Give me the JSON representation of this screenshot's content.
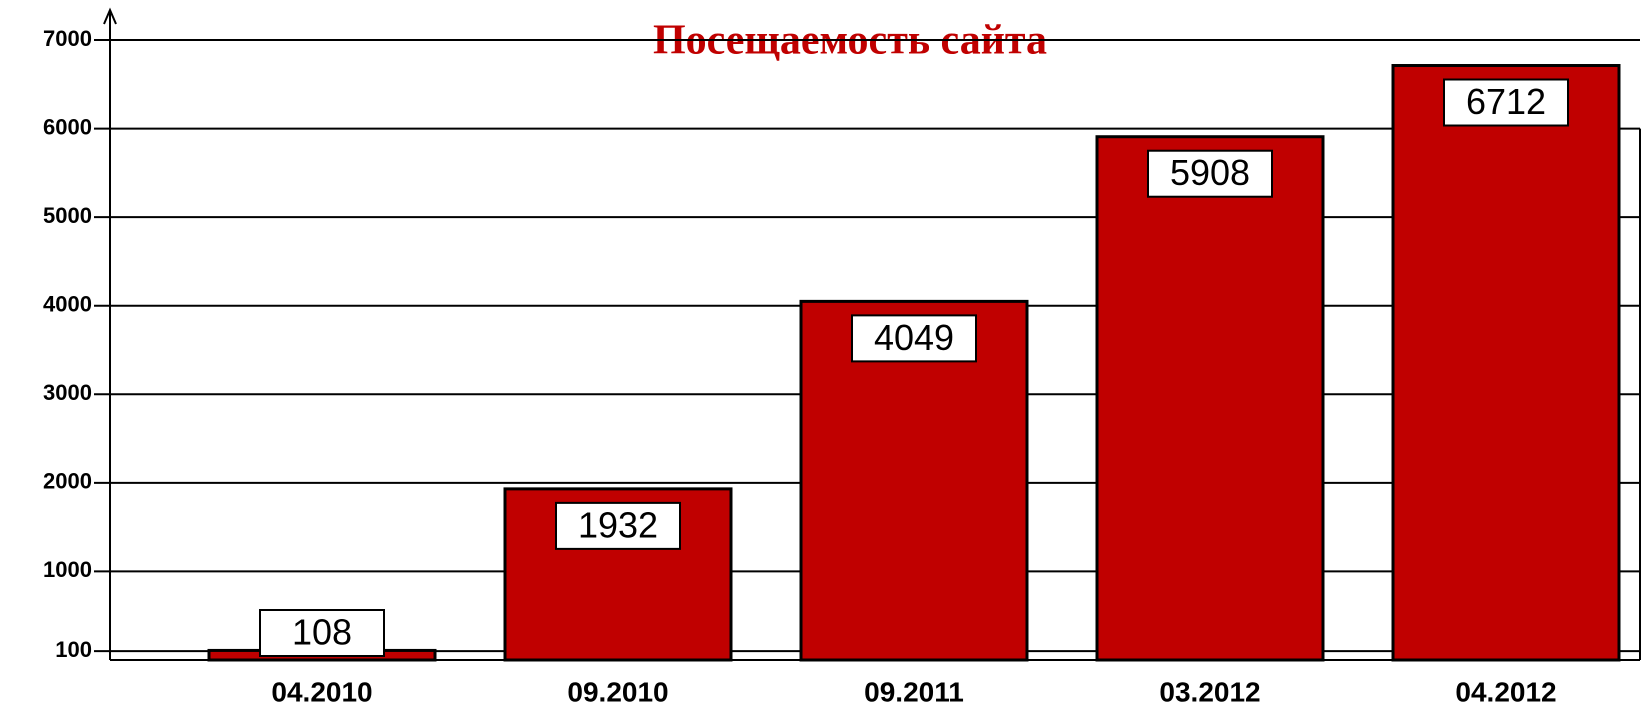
{
  "chart_data": {
    "type": "bar",
    "title": "Посещаемость сайта",
    "categories": [
      "04.2010",
      "09.2010",
      "09.2011",
      "03.2012",
      "04.2012"
    ],
    "values": [
      108,
      1932,
      4049,
      5908,
      6712
    ],
    "color": "#c00000",
    "ylim": [
      0,
      7000
    ],
    "yticks": [
      100,
      1000,
      2000,
      3000,
      4000,
      5000,
      6000,
      7000
    ],
    "grid": true
  }
}
